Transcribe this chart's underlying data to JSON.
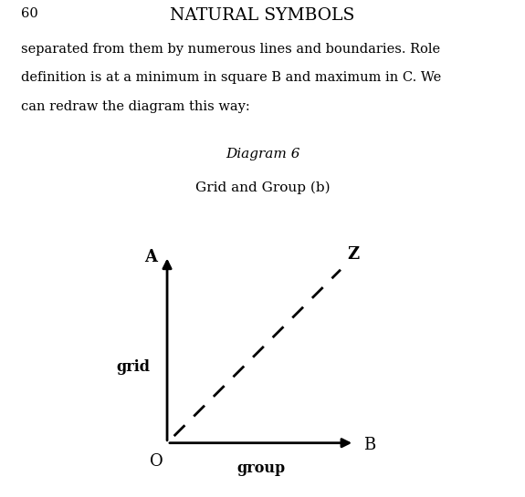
{
  "page_number": "60",
  "header": "NATURAL SYMBOLS",
  "body_line1": "separated from them by numerous lines and boundaries. Role",
  "body_line2": "definition is at a minimum in square B and maximum in C. We",
  "body_line3": "can redraw the diagram this way:",
  "diagram_title_italic": "Diagram 6",
  "diagram_subtitle": "Grid and Group (b)",
  "origin_label": "O",
  "x_end_label": "B",
  "y_end_label": "A",
  "diag_end_label": "Z",
  "x_axis_label": "group",
  "y_axis_label": "grid",
  "background_color": "#ffffff",
  "text_color": "#000000",
  "line_color": "#000000",
  "axis_arrow_linewidth": 2.0,
  "dashed_line_linewidth": 2.0,
  "font_family": "serif",
  "body_fontsize": 10.5,
  "header_fontsize": 13.5,
  "label_fontsize": 13,
  "axis_label_fontsize": 11.5
}
